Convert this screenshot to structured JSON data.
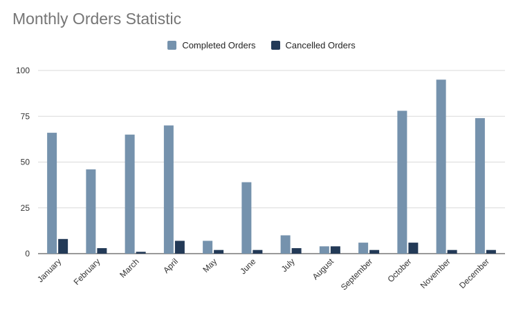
{
  "chart_data": {
    "type": "bar",
    "title": "Monthly Orders Statistic",
    "xlabel": "",
    "ylabel": "",
    "ylim": [
      0,
      100
    ],
    "yticks": [
      0,
      25,
      50,
      75,
      100
    ],
    "grid": true,
    "legend_position": "top-center",
    "categories": [
      "January",
      "February",
      "March",
      "April",
      "May",
      "June",
      "July",
      "August",
      "September",
      "October",
      "November",
      "December"
    ],
    "series": [
      {
        "name": "Completed Orders",
        "color": "#7592ad",
        "values": [
          66,
          46,
          65,
          70,
          7,
          39,
          10,
          4,
          6,
          78,
          95,
          74
        ]
      },
      {
        "name": "Cancelled Orders",
        "color": "#233a57",
        "values": [
          8,
          3,
          1,
          7,
          2,
          2,
          3,
          4,
          2,
          6,
          2,
          2
        ]
      }
    ]
  }
}
